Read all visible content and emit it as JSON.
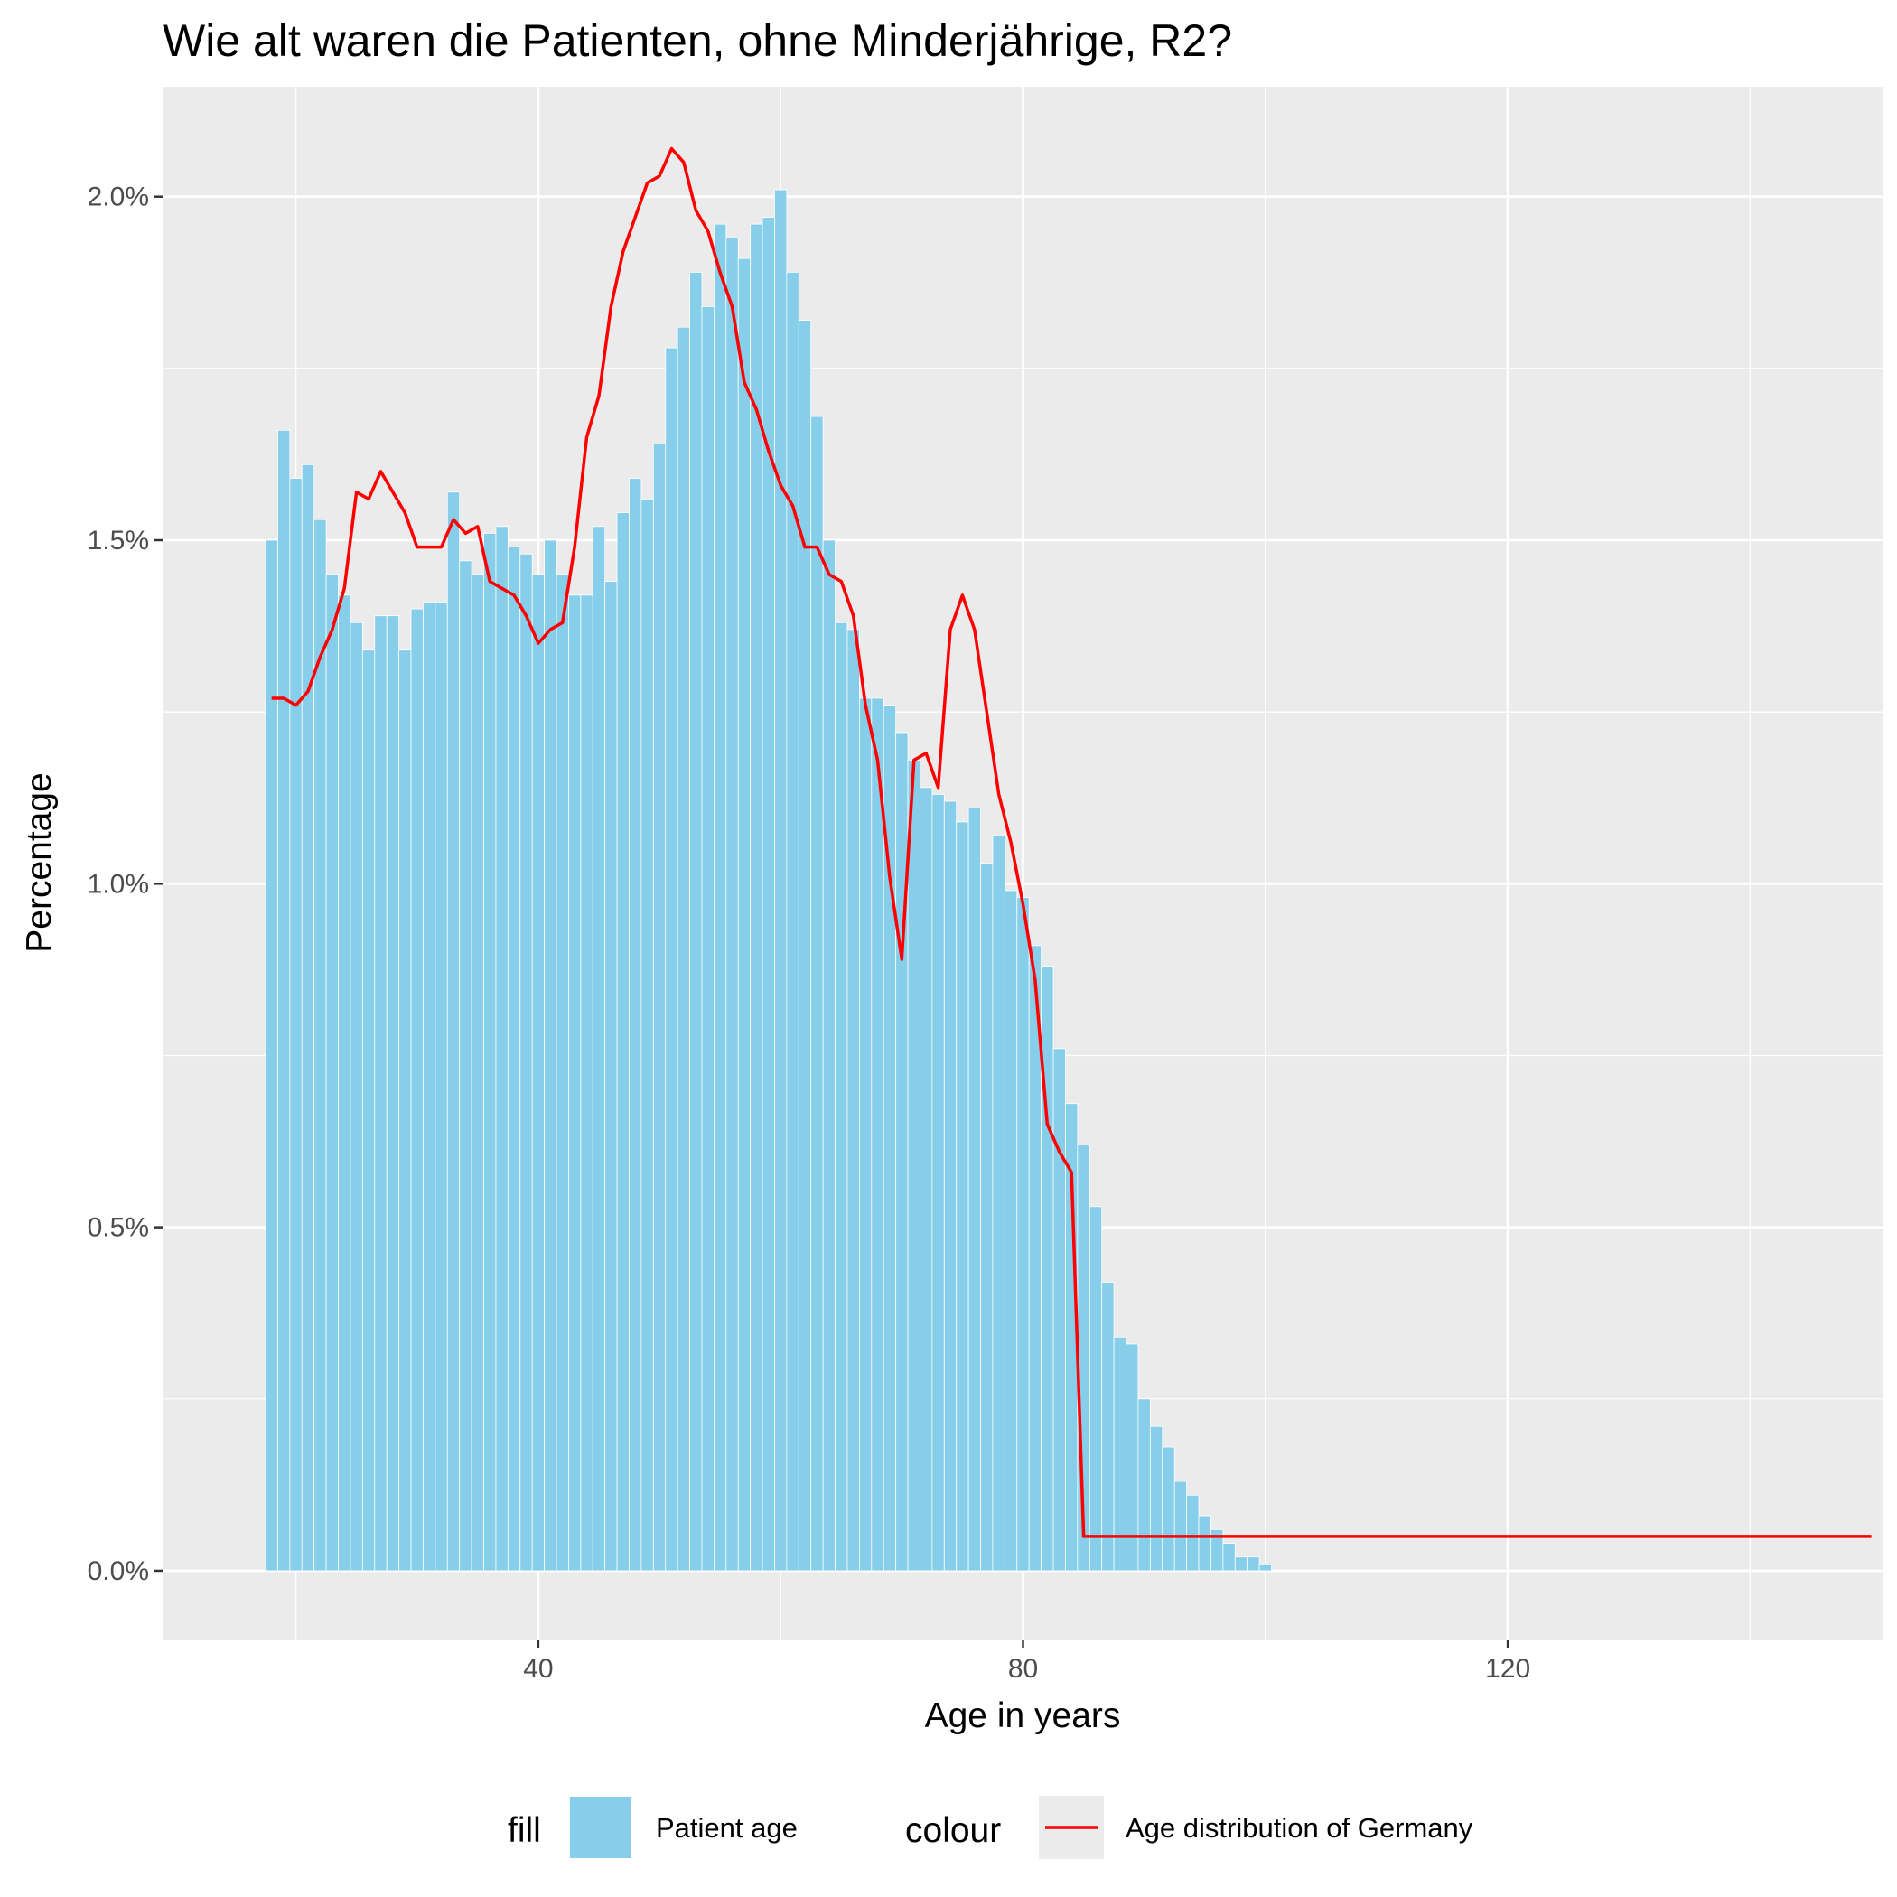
{
  "chart_data": {
    "type": "bar",
    "title": "Wie alt waren die Patienten, ohne Minderjährige, R2?",
    "xlabel": "Age in years",
    "ylabel": "Percentage",
    "xlim": [
      9,
      151
    ],
    "ylim": [
      -0.1,
      2.16
    ],
    "x_ticks": [
      40,
      80,
      120
    ],
    "x_tick_labels": [
      "40",
      "80",
      "120"
    ],
    "y_ticks": [
      0,
      0.5,
      1.0,
      1.5,
      2.0
    ],
    "y_tick_labels": [
      "0.0%",
      "0.5%",
      "1.0%",
      "1.5%",
      "2.0%"
    ],
    "grid": true,
    "legend_position": "bottom",
    "colors": {
      "bar": "#87CEEB",
      "line": "#FF0000",
      "panel": "#EBEBEB",
      "grid": "#FFFFFF"
    },
    "series": [
      {
        "kind": "bar",
        "name": "Patient age",
        "x": [
          18,
          19,
          20,
          21,
          22,
          23,
          24,
          25,
          26,
          27,
          28,
          29,
          30,
          31,
          32,
          33,
          34,
          35,
          36,
          37,
          38,
          39,
          40,
          41,
          42,
          43,
          44,
          45,
          46,
          47,
          48,
          49,
          50,
          51,
          52,
          53,
          54,
          55,
          56,
          57,
          58,
          59,
          60,
          61,
          62,
          63,
          64,
          65,
          66,
          67,
          68,
          69,
          70,
          71,
          72,
          73,
          74,
          75,
          76,
          77,
          78,
          79,
          80,
          81,
          82,
          83,
          84,
          85,
          86,
          87,
          88,
          89,
          90,
          91,
          92,
          93,
          94,
          95,
          96,
          97,
          98,
          99,
          100
        ],
        "values": [
          1.5,
          1.66,
          1.59,
          1.61,
          1.53,
          1.45,
          1.42,
          1.38,
          1.34,
          1.39,
          1.39,
          1.34,
          1.4,
          1.41,
          1.41,
          1.57,
          1.47,
          1.45,
          1.51,
          1.52,
          1.49,
          1.48,
          1.45,
          1.5,
          1.45,
          1.42,
          1.42,
          1.52,
          1.44,
          1.54,
          1.59,
          1.56,
          1.64,
          1.78,
          1.81,
          1.89,
          1.84,
          1.96,
          1.94,
          1.91,
          1.96,
          1.97,
          2.01,
          1.89,
          1.82,
          1.68,
          1.5,
          1.38,
          1.37,
          1.27,
          1.27,
          1.26,
          1.22,
          1.18,
          1.14,
          1.13,
          1.12,
          1.09,
          1.11,
          1.03,
          1.07,
          0.99,
          0.98,
          0.91,
          0.88,
          0.76,
          0.68,
          0.62,
          0.53,
          0.42,
          0.34,
          0.33,
          0.25,
          0.21,
          0.18,
          0.13,
          0.11,
          0.08,
          0.06,
          0.04,
          0.02,
          0.02,
          0.01
        ]
      },
      {
        "kind": "line",
        "name": "Age distribution of Germany",
        "x": [
          18,
          19,
          20,
          21,
          22,
          23,
          24,
          25,
          26,
          27,
          28,
          29,
          30,
          31,
          32,
          33,
          34,
          35,
          36,
          37,
          38,
          39,
          40,
          41,
          42,
          43,
          44,
          45,
          46,
          47,
          48,
          49,
          50,
          51,
          52,
          53,
          54,
          55,
          56,
          57,
          58,
          59,
          60,
          61,
          62,
          63,
          64,
          65,
          66,
          67,
          68,
          69,
          70,
          71,
          72,
          73,
          74,
          75,
          76,
          77,
          78,
          79,
          80,
          81,
          82,
          83,
          84,
          85,
          86,
          150
        ],
        "values": [
          1.27,
          1.27,
          1.26,
          1.28,
          1.33,
          1.37,
          1.43,
          1.57,
          1.56,
          1.6,
          1.57,
          1.54,
          1.49,
          1.49,
          1.49,
          1.53,
          1.51,
          1.52,
          1.44,
          1.43,
          1.42,
          1.39,
          1.35,
          1.37,
          1.38,
          1.49,
          1.65,
          1.71,
          1.84,
          1.92,
          1.97,
          2.02,
          2.03,
          2.07,
          2.05,
          1.98,
          1.95,
          1.89,
          1.84,
          1.73,
          1.69,
          1.63,
          1.58,
          1.55,
          1.49,
          1.49,
          1.45,
          1.44,
          1.39,
          1.26,
          1.18,
          1.01,
          0.89,
          1.18,
          1.19,
          1.14,
          1.37,
          1.42,
          1.37,
          1.25,
          1.13,
          1.06,
          0.97,
          0.86,
          0.65,
          0.61,
          0.58,
          0.05,
          0.05,
          0.05
        ]
      }
    ]
  },
  "legend": {
    "fill_title": "fill",
    "fill_label": "Patient age",
    "colour_title": "colour",
    "colour_label": "Age distribution of Germany"
  }
}
